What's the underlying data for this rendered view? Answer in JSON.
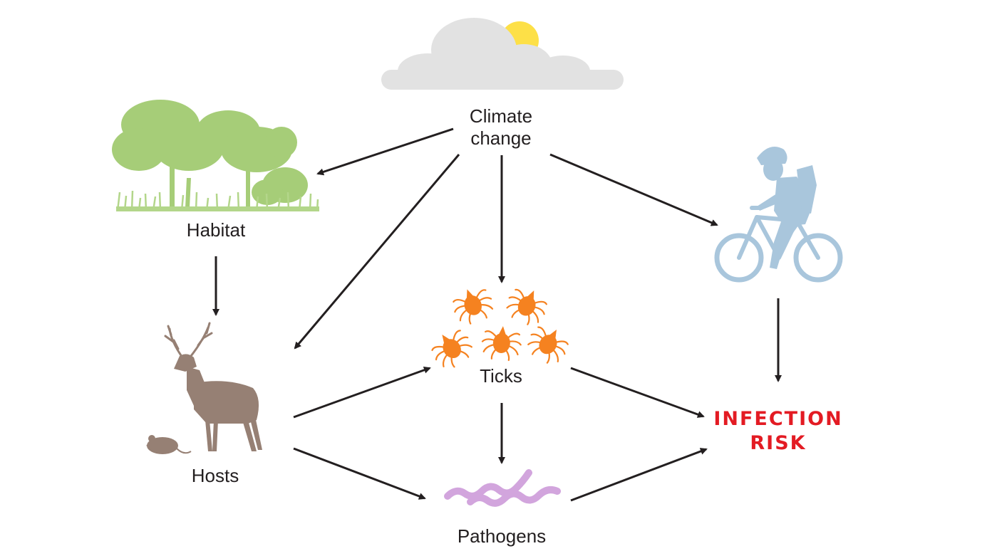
{
  "nodes": {
    "climate": {
      "line1": "Climate",
      "line2": "change"
    },
    "habitat": {
      "label": "Habitat"
    },
    "hosts": {
      "label": "Hosts"
    },
    "ticks": {
      "label": "Ticks"
    },
    "pathogens": {
      "label": "Pathogens"
    },
    "risk": {
      "line1": "INFECTION",
      "line2": "RISK"
    }
  },
  "colors": {
    "cloud": "#e2e2e2",
    "sun": "#fde047",
    "tree": "#a6cd78",
    "grass": "#b3d68a",
    "animal": "#968074",
    "tick": "#f58220",
    "tick_leg": "#f58220",
    "pathogen": "#d2a5dd",
    "cyclist": "#a9c6dc",
    "risk_text": "#e31b23",
    "arrow": "#231f20"
  },
  "icons": [
    "cloud-sun-icon",
    "trees-icon",
    "deer-icon",
    "mouse-icon",
    "tick-icon",
    "pathogen-icon",
    "cyclist-icon"
  ],
  "edges": [
    {
      "from": "Climate change",
      "to": "Habitat"
    },
    {
      "from": "Climate change",
      "to": "Hosts"
    },
    {
      "from": "Climate change",
      "to": "Ticks"
    },
    {
      "from": "Climate change",
      "to": "Human"
    },
    {
      "from": "Habitat",
      "to": "Hosts"
    },
    {
      "from": "Hosts",
      "to": "Ticks"
    },
    {
      "from": "Hosts",
      "to": "Pathogens"
    },
    {
      "from": "Ticks",
      "to": "Pathogens"
    },
    {
      "from": "Ticks",
      "to": "INFECTION RISK"
    },
    {
      "from": "Pathogens",
      "to": "INFECTION RISK"
    },
    {
      "from": "Human",
      "to": "INFECTION RISK"
    }
  ]
}
